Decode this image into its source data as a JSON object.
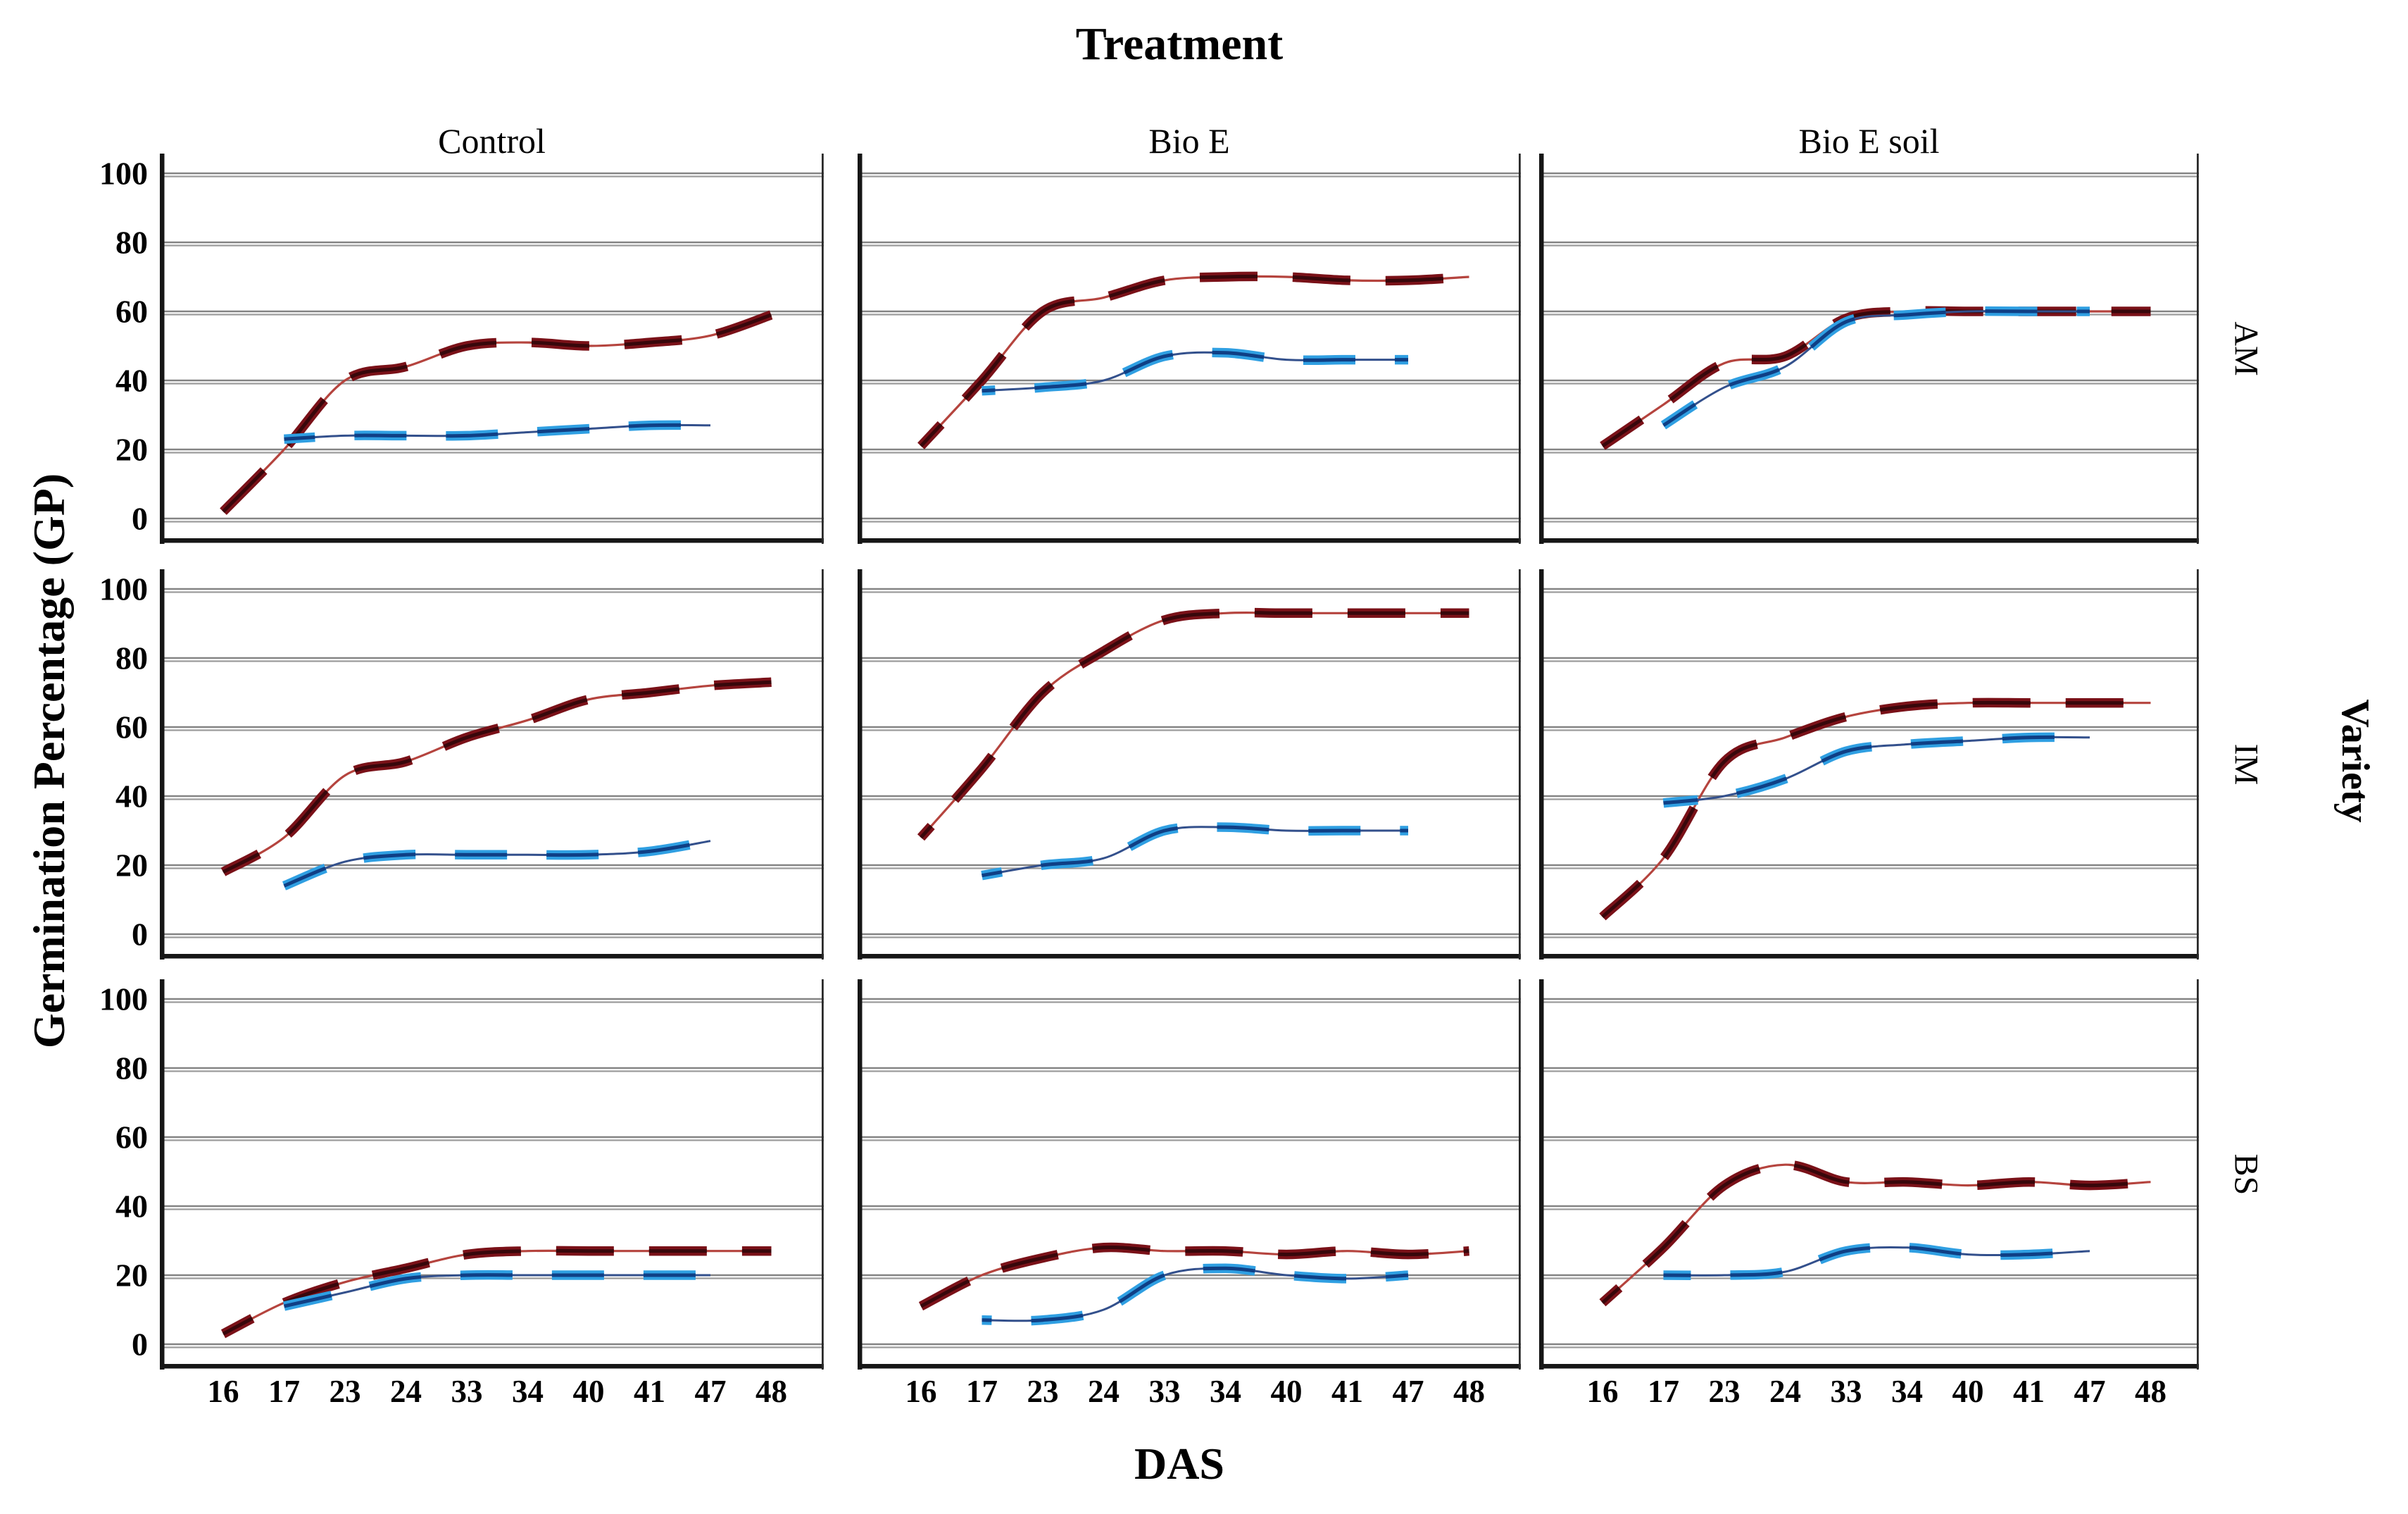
{
  "title": "Treatment",
  "axis": {
    "y_label": "Germination Percentage (GP)",
    "x_label": "DAS",
    "right_label": "Variety",
    "y_ticks": [
      "100",
      "80",
      "60",
      "40",
      "20",
      "0"
    ],
    "x_ticks": [
      "16",
      "17",
      "23",
      "24",
      "33",
      "34",
      "40",
      "41",
      "47",
      "48"
    ]
  },
  "columns": [
    "Control",
    "Bio E",
    "Bio E soil"
  ],
  "rows": [
    "AM",
    "IM",
    "BS"
  ],
  "colors": {
    "red_dash": "#7a1118",
    "red_dash_core": "#38070b",
    "red_line": "#b5443e",
    "blue_dash": "#2f9fe2",
    "blue_dash_core": "#0f3f85",
    "blue_line": "#33508c",
    "grid_dark": "#848484",
    "grid_light": "#9c9c9c",
    "axis_black": "#161616"
  },
  "chart_data": {
    "type": "line",
    "title": "Treatment",
    "xlabel": "DAS",
    "ylabel": "Germination Percentage (GP)",
    "right_axis_label": "Variety",
    "x_categories": [
      16,
      17,
      23,
      24,
      33,
      34,
      40,
      41,
      47,
      48
    ],
    "x_scale": "categorical-equal-spacing",
    "y_gridlines": [
      0,
      20,
      40,
      60,
      80,
      100
    ],
    "ylim": [
      0,
      100
    ],
    "legend": "none shown",
    "facet_columns": [
      "Control",
      "Bio E",
      "Bio E soil"
    ],
    "facet_rows": [
      "AM",
      "IM",
      "BS"
    ],
    "series_descriptions": [
      {
        "id": "red",
        "style": "thick dark-maroon dashes over thin red smooth curve",
        "x_span": [
          16,
          48
        ]
      },
      {
        "id": "blue",
        "style": "thick bright-blue dashes over thin navy smooth curve",
        "x_span": [
          17,
          47
        ]
      }
    ],
    "panels": [
      {
        "variety": "AM",
        "treatment": "Control",
        "red": {
          "x": [
            16,
            17,
            23,
            24,
            33,
            34,
            40,
            41,
            47,
            48
          ],
          "values": [
            2,
            20,
            40,
            44,
            50,
            51,
            50,
            51,
            53,
            59
          ]
        },
        "blue": {
          "x": [
            17,
            23,
            24,
            33,
            34,
            40,
            41,
            47
          ],
          "values": [
            23,
            24,
            24,
            24,
            25,
            26,
            27,
            27
          ]
        }
      },
      {
        "variety": "AM",
        "treatment": "Bio E",
        "red": {
          "x": [
            16,
            17,
            23,
            24,
            33,
            34,
            40,
            41,
            47,
            48
          ],
          "values": [
            21,
            40,
            60,
            64,
            69,
            70,
            70,
            69,
            69,
            70
          ]
        },
        "blue": {
          "x": [
            17,
            23,
            24,
            33,
            34,
            40,
            41,
            47
          ],
          "values": [
            37,
            38,
            40,
            47,
            48,
            46,
            46,
            46
          ]
        }
      },
      {
        "variety": "AM",
        "treatment": "Bio E soil",
        "red": {
          "x": [
            16,
            17,
            23,
            24,
            33,
            34,
            40,
            41,
            47,
            48
          ],
          "values": [
            21,
            33,
            45,
            47,
            58,
            60,
            60,
            60,
            60,
            60
          ]
        },
        "blue": {
          "x": [
            17,
            23,
            24,
            33,
            34,
            40,
            41,
            47
          ],
          "values": [
            27,
            38,
            44,
            57,
            59,
            60,
            60,
            60
          ]
        }
      },
      {
        "variety": "IM",
        "treatment": "Control",
        "red": {
          "x": [
            16,
            17,
            23,
            24,
            33,
            34,
            40,
            41,
            47,
            48
          ],
          "values": [
            18,
            28,
            46,
            50,
            57,
            62,
            68,
            70,
            72,
            73
          ]
        },
        "blue": {
          "x": [
            17,
            23,
            24,
            33,
            34,
            40,
            41,
            47
          ],
          "values": [
            14,
            21,
            23,
            23,
            23,
            23,
            24,
            27
          ]
        }
      },
      {
        "variety": "IM",
        "treatment": "Bio E",
        "red": {
          "x": [
            16,
            17,
            23,
            24,
            33,
            34,
            40,
            41,
            47,
            48
          ],
          "values": [
            28,
            48,
            70,
            82,
            91,
            93,
            93,
            93,
            93,
            93
          ]
        },
        "blue": {
          "x": [
            17,
            23,
            24,
            33,
            34,
            40,
            41,
            47
          ],
          "values": [
            17,
            20,
            22,
            30,
            31,
            30,
            30,
            30
          ]
        }
      },
      {
        "variety": "IM",
        "treatment": "Bio E soil",
        "red": {
          "x": [
            16,
            17,
            23,
            24,
            33,
            34,
            40,
            41,
            47,
            48
          ],
          "values": [
            5,
            22,
            50,
            57,
            63,
            66,
            67,
            67,
            67,
            67
          ]
        },
        "blue": {
          "x": [
            17,
            23,
            24,
            33,
            34,
            40,
            41,
            47
          ],
          "values": [
            38,
            40,
            45,
            53,
            55,
            56,
            57,
            57
          ]
        }
      },
      {
        "variety": "BS",
        "treatment": "Control",
        "red": {
          "x": [
            16,
            17,
            23,
            24,
            33,
            34,
            40,
            41,
            47,
            48
          ],
          "values": [
            3,
            12,
            18,
            22,
            26,
            27,
            27,
            27,
            27,
            27
          ]
        },
        "blue": {
          "x": [
            17,
            23,
            24,
            33,
            34,
            40,
            41,
            47
          ],
          "values": [
            11,
            15,
            19,
            20,
            20,
            20,
            20,
            20
          ]
        }
      },
      {
        "variety": "BS",
        "treatment": "Bio E",
        "red": {
          "x": [
            16,
            17,
            23,
            24,
            33,
            34,
            40,
            41,
            47,
            48
          ],
          "values": [
            11,
            20,
            25,
            28,
            27,
            27,
            26,
            27,
            26,
            27
          ]
        },
        "blue": {
          "x": [
            17,
            23,
            24,
            33,
            34,
            40,
            41,
            47
          ],
          "values": [
            7,
            7,
            10,
            20,
            22,
            20,
            19,
            20
          ]
        }
      },
      {
        "variety": "BS",
        "treatment": "Bio E soil",
        "red": {
          "x": [
            16,
            17,
            23,
            24,
            33,
            34,
            40,
            41,
            47,
            48
          ],
          "values": [
            12,
            28,
            46,
            52,
            47,
            47,
            46,
            47,
            46,
            47
          ]
        },
        "blue": {
          "x": [
            17,
            23,
            24,
            33,
            34,
            40,
            41,
            47
          ],
          "values": [
            20,
            20,
            21,
            27,
            28,
            26,
            26,
            27
          ]
        }
      }
    ]
  }
}
